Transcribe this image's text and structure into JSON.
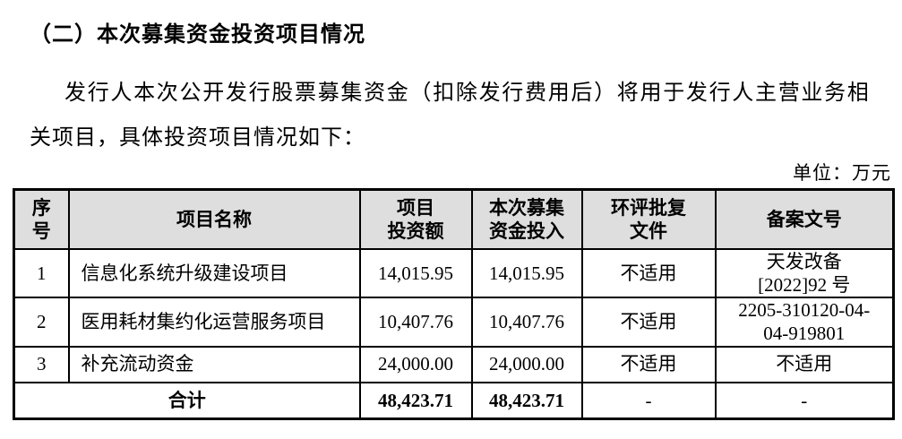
{
  "document": {
    "heading": "（二）本次募集资金投资项目情况",
    "paragraph": {
      "line1": "发行人本次公开发行股票募集资金（扣除发行费用后）将用于发行人主营业务相",
      "line2": "关项目，具体投资项目情况如下："
    },
    "unit_note": "单位：万元"
  },
  "table": {
    "headers": {
      "no": {
        "l1": "序",
        "l2": "号"
      },
      "name": {
        "l1": "项目名称",
        "l2": ""
      },
      "investment": {
        "l1": "项目",
        "l2": "投资额"
      },
      "raised": {
        "l1": "本次募集",
        "l2": "资金投入"
      },
      "eia": {
        "l1": "环评批复",
        "l2": "文件"
      },
      "filing": {
        "l1": "备案文号",
        "l2": ""
      }
    },
    "rows": [
      {
        "no": "1",
        "name": "信息化系统升级建设项目",
        "investment": "14,015.95",
        "raised": "14,015.95",
        "eia": "不适用",
        "filing_l1": "天发改备",
        "filing_l2": "[2022]92 号"
      },
      {
        "no": "2",
        "name": "医用耗材集约化运营服务项目",
        "investment": "10,407.76",
        "raised": "10,407.76",
        "eia": "不适用",
        "filing_l1": "2205-310120-04-",
        "filing_l2": "04-919801"
      },
      {
        "no": "3",
        "name": "补充流动资金",
        "investment": "24,000.00",
        "raised": "24,000.00",
        "eia": "不适用",
        "filing_l1": "不适用",
        "filing_l2": ""
      }
    ],
    "total": {
      "label": "合计",
      "investment": "48,423.71",
      "raised": "48,423.71",
      "eia": "-",
      "filing": "-"
    }
  }
}
